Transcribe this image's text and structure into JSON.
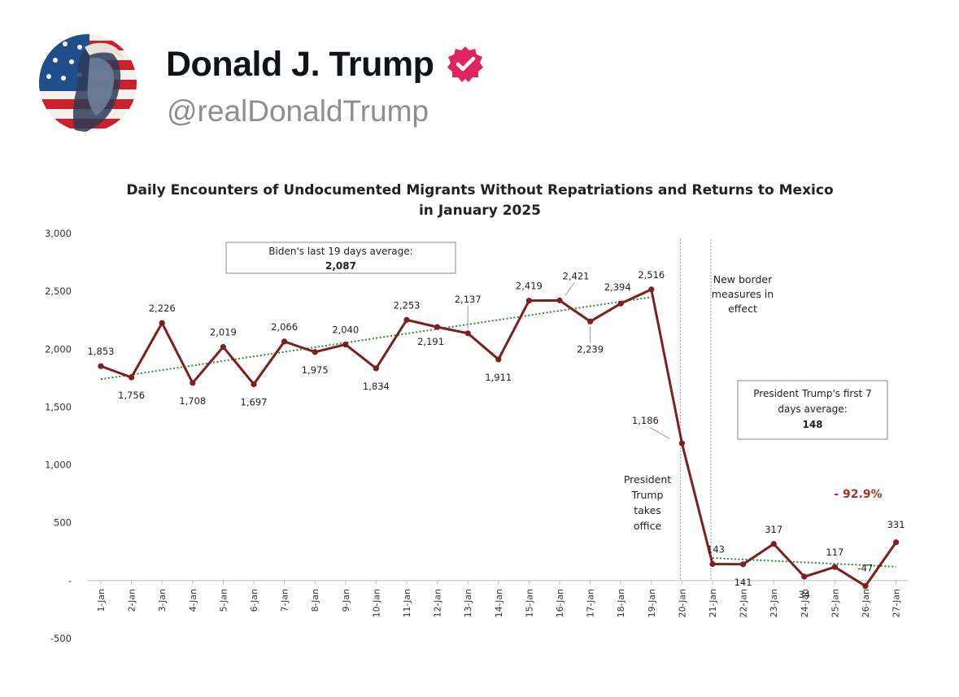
{
  "post": {
    "display_name": "Donald J. Trump",
    "handle": "@realDonaldTrump",
    "verified": true,
    "verified_color": "#e0245e",
    "avatar_icon": "profile-avatar-flag-portrait"
  },
  "chart_data": {
    "type": "line",
    "title": "Daily Encounters of Undocumented Migrants Without Repatriations and Returns to Mexico in January 2025",
    "title_lines": [
      "Daily Encounters of Undocumented Migrants Without Repatriations and Returns to Mexico",
      "in January 2025"
    ],
    "xlabel": "",
    "ylabel": "",
    "categories": [
      "1-Jan",
      "2-Jan",
      "3-Jan",
      "4-Jan",
      "5-Jan",
      "6-Jan",
      "7-Jan",
      "8-Jan",
      "9-Jan",
      "10-Jan",
      "11-Jan",
      "12-Jan",
      "13-Jan",
      "14-Jan",
      "15-Jan",
      "16-Jan",
      "17-Jan",
      "18-Jan",
      "19-Jan",
      "20-Jan",
      "21-Jan",
      "22-Jan",
      "23-Jan",
      "24-Jan",
      "25-Jan",
      "26-Jan",
      "27-Jan"
    ],
    "values": [
      1853,
      1756,
      2226,
      1708,
      2019,
      1697,
      2066,
      1975,
      2040,
      1834,
      2253,
      2191,
      2137,
      1911,
      2419,
      2421,
      2239,
      2394,
      2516,
      1186,
      143,
      141,
      317,
      34,
      117,
      -47,
      331
    ],
    "value_labels": [
      "1,853",
      "1,756",
      "2,226",
      "1,708",
      "2,019",
      "1,697",
      "2,066",
      "1,975",
      "2,040",
      "1,834",
      "2,253",
      "2,191",
      "2,137",
      "1,911",
      "2,419",
      "2,421",
      "2,239",
      "2,394",
      "2,516",
      "1,186",
      "143",
      "141",
      "317",
      "34",
      "117",
      "-47",
      "331"
    ],
    "ylim": [
      -500,
      3000
    ],
    "y_ticks": [
      3000,
      2500,
      2000,
      1500,
      1000,
      500,
      0,
      -500
    ],
    "y_tick_labels": [
      "3,000",
      "2,500",
      "2,000",
      "1,500",
      "1,000",
      "500",
      "-",
      "-500"
    ],
    "grid": false,
    "series_color": "#7b1f1f",
    "trend_color": "#2e8b3a",
    "trends": [
      {
        "from": "1-Jan",
        "to": "19-Jan",
        "start": 1740,
        "end": 2450
      },
      {
        "from": "21-Jan",
        "to": "27-Jan",
        "start": 195,
        "end": 120
      }
    ],
    "vlines": [
      "20-Jan",
      "21-Jan"
    ],
    "annotations": {
      "biden_box_line1": "Biden's last 19 days average:",
      "biden_box_line2": "2,087",
      "trump_box_line1": "President Trump's first 7",
      "trump_box_line2": "days average:",
      "trump_box_line3": "148",
      "border_line1": "New border",
      "border_line2": "measures in",
      "border_line3": "effect",
      "office_line1": "President",
      "office_line2": "Trump",
      "office_line3": "takes",
      "office_line4": "office",
      "pct_change": "- 92.9%"
    }
  }
}
